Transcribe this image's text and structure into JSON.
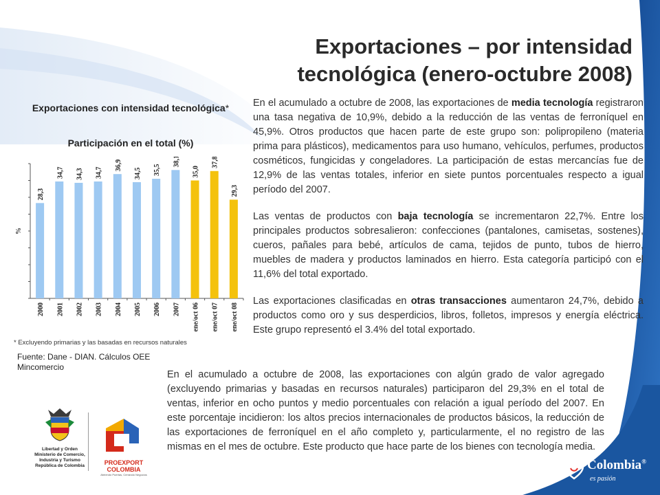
{
  "slide": {
    "title_line1": "Exportaciones – por intensidad",
    "title_line2": "tecnológica (enero-octubre 2008)"
  },
  "colors": {
    "bar_blue": "#9ec9f2",
    "bar_yellow": "#f4c20d",
    "swoosh": "#1f5fa8"
  },
  "chart_data": {
    "type": "bar",
    "title": "Exportaciones con intensidad tecnológica",
    "title_mark": "*",
    "subtitle": "Participación en el total (%)",
    "ylabel": "%",
    "ylim": [
      0,
      40
    ],
    "categories": [
      "2000",
      "2001",
      "2002",
      "2003",
      "2004",
      "2005",
      "2006",
      "2007",
      "ene/oct 06",
      "ene/oct 07",
      "ene/oct 08"
    ],
    "values": [
      28.3,
      34.7,
      34.3,
      34.7,
      36.9,
      34.5,
      35.5,
      38.1,
      35.0,
      37.8,
      29.3
    ],
    "value_labels": [
      "28,3",
      "34,7",
      "34,3",
      "34,7",
      "36,9",
      "34,5",
      "35,5",
      "38,1",
      "35,0",
      "37,8",
      "29,3"
    ],
    "highlight": [
      false,
      false,
      false,
      false,
      false,
      false,
      false,
      false,
      true,
      true,
      true
    ],
    "grid": false,
    "legend": "none"
  },
  "footnote": "* Excluyendo primarias y las basadas en recursos naturales",
  "source_line1": "Fuente: Dane - DIAN. Cálculos OEE",
  "source_line2": "Mincomercio",
  "paragraphs": {
    "p1_a": "En el acumulado a octubre de 2008, las exportaciones de ",
    "p1_b": "media tecnología",
    "p1_c": " registraron una tasa negativa de 10,9%, debido a la reducción de las ventas de ferroníquel en 45,9%. Otros productos que hacen parte de este grupo son: polipropileno (materia prima para plásticos), medicamentos para uso humano, vehículos, perfumes, productos cosméticos, fungicidas y congeladores. La participación de estas mercancías fue de 12,9% de las ventas totales, inferior en siete puntos porcentuales respecto a igual período del 2007.",
    "p2_a": "Las ventas de productos con ",
    "p2_b": "baja tecnología",
    "p2_c": " se incrementaron 22,7%. Entre los principales productos sobresalieron: confecciones (pantalones, camisetas, sostenes), cueros, pañales para bebé, artículos de cama, tejidos de punto, tubos de hierro, muebles de madera y productos laminados en hierro. Esta categoría participó con el 11,6% del total exportado.",
    "p3_a": "Las exportaciones clasificadas en ",
    "p3_b": "otras transacciones",
    "p3_c": " aumentaron 24,7%, debido a productos como oro y sus desperdicios, libros, folletos, impresos y energía eléctrica. Este grupo representó el 3.4% del total exportado.",
    "p4": "En el acumulado a octubre de 2008, las exportaciones con algún grado de valor agregado (excluyendo primarias y basadas en recursos naturales) participaron del 29,3% en el total de ventas, inferior en ocho puntos y medio porcentuales con relación a igual período del 2007. En este porcentaje incidieron: los altos precios internacionales de productos básicos, la reducción de las exportaciones de ferroníquel en el año completo y, particularmente, el no registro de las mismas en el mes de octubre. Este producto que hace parte de los bienes con tecnología media."
  },
  "logos": {
    "gov_text": "Libertad y Orden\nMinisterio de Comercio,\nIndustria y Turismo\nRepública de Colombia",
    "proexport_name": "PROEXPORT\nCOLOMBIA",
    "proexport_sub": "Abriendo Puertas, Cerrando Negocios",
    "colombia_word": "Colombia",
    "colombia_reg": "®",
    "colombia_sub": "es pasión"
  }
}
